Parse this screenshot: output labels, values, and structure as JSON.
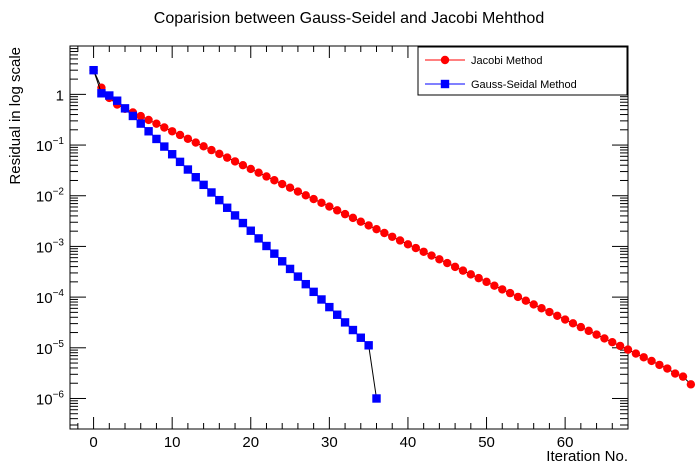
{
  "chart_data": {
    "type": "line",
    "title": "Coparision between Gauss-Seidel and Jacobi Mehthod",
    "xlabel": "Iteration No.",
    "ylabel": "Residual in log scale",
    "xlim": [
      -3,
      68
    ],
    "ylim": [
      2.5e-07,
      9
    ],
    "y_scale": "log",
    "x_ticks": [
      0,
      10,
      20,
      30,
      40,
      50,
      60
    ],
    "y_ticks": [
      {
        "value": 1,
        "base": "1",
        "exp": ""
      },
      {
        "value": 0.1,
        "base": "10",
        "exp": "−1"
      },
      {
        "value": 0.01,
        "base": "10",
        "exp": "−2"
      },
      {
        "value": 0.001,
        "base": "10",
        "exp": "−3"
      },
      {
        "value": 0.0001,
        "base": "10",
        "exp": "−4"
      },
      {
        "value": 1e-05,
        "base": "10",
        "exp": "−5"
      },
      {
        "value": 1e-06,
        "base": "10",
        "exp": "−6"
      }
    ],
    "legend_position": "top-right",
    "grid": false,
    "series": [
      {
        "name": "Jacobi Method",
        "color": "#ff0000",
        "marker": "circle",
        "x_start": 0,
        "values": [
          3.0,
          1.35,
          0.85,
          0.63,
          0.52,
          0.44,
          0.372,
          0.313,
          0.264,
          0.222,
          0.187,
          0.158,
          0.133,
          0.112,
          0.0944,
          0.0795,
          0.067,
          0.0565,
          0.0476,
          0.0401,
          0.0338,
          0.0285,
          0.024,
          0.0202,
          0.017,
          0.0144,
          0.0121,
          0.0102,
          0.0086,
          0.00725,
          0.00611,
          0.00515,
          0.00434,
          0.00366,
          0.00308,
          0.0026,
          0.00219,
          0.00184,
          0.00155,
          0.00131,
          0.0011,
          0.00093,
          0.000784,
          0.000661,
          0.000557,
          0.000469,
          0.000395,
          0.000333,
          0.000281,
          0.000237,
          0.0002,
          0.000168,
          0.000142,
          0.00012,
          0.000101,
          8.49e-05,
          7.16e-05,
          6.03e-05,
          5.08e-05,
          4.28e-05,
          3.61e-05,
          3.04e-05,
          2.56e-05,
          2.16e-05,
          1.82e-05,
          1.53e-05,
          1.29e-05,
          1.09e-05,
          9.2e-06,
          7.7e-06,
          6.5e-06,
          5.5e-06,
          4.6e-06,
          3.9e-06,
          3.1e-06,
          2.7e-06,
          1.9e-06
        ]
      },
      {
        "name": "Gauss-Seidal Method",
        "color": "#0000ff",
        "marker": "square",
        "x_start": 0,
        "values": [
          3.0,
          1.05,
          0.95,
          0.75,
          0.53,
          0.375,
          0.265,
          0.187,
          0.132,
          0.0933,
          0.0659,
          0.0466,
          0.0329,
          0.0232,
          0.0164,
          0.0116,
          0.00819,
          0.00579,
          0.00409,
          0.00289,
          0.00204,
          0.00144,
          0.00102,
          0.00072,
          0.000509,
          0.00036,
          0.000254,
          0.00018,
          0.000127,
          8.98e-05,
          6.35e-05,
          4.49e-05,
          3.17e-05,
          2.24e-05,
          1.58e-05,
          1.12e-05,
          1e-06
        ]
      }
    ]
  }
}
